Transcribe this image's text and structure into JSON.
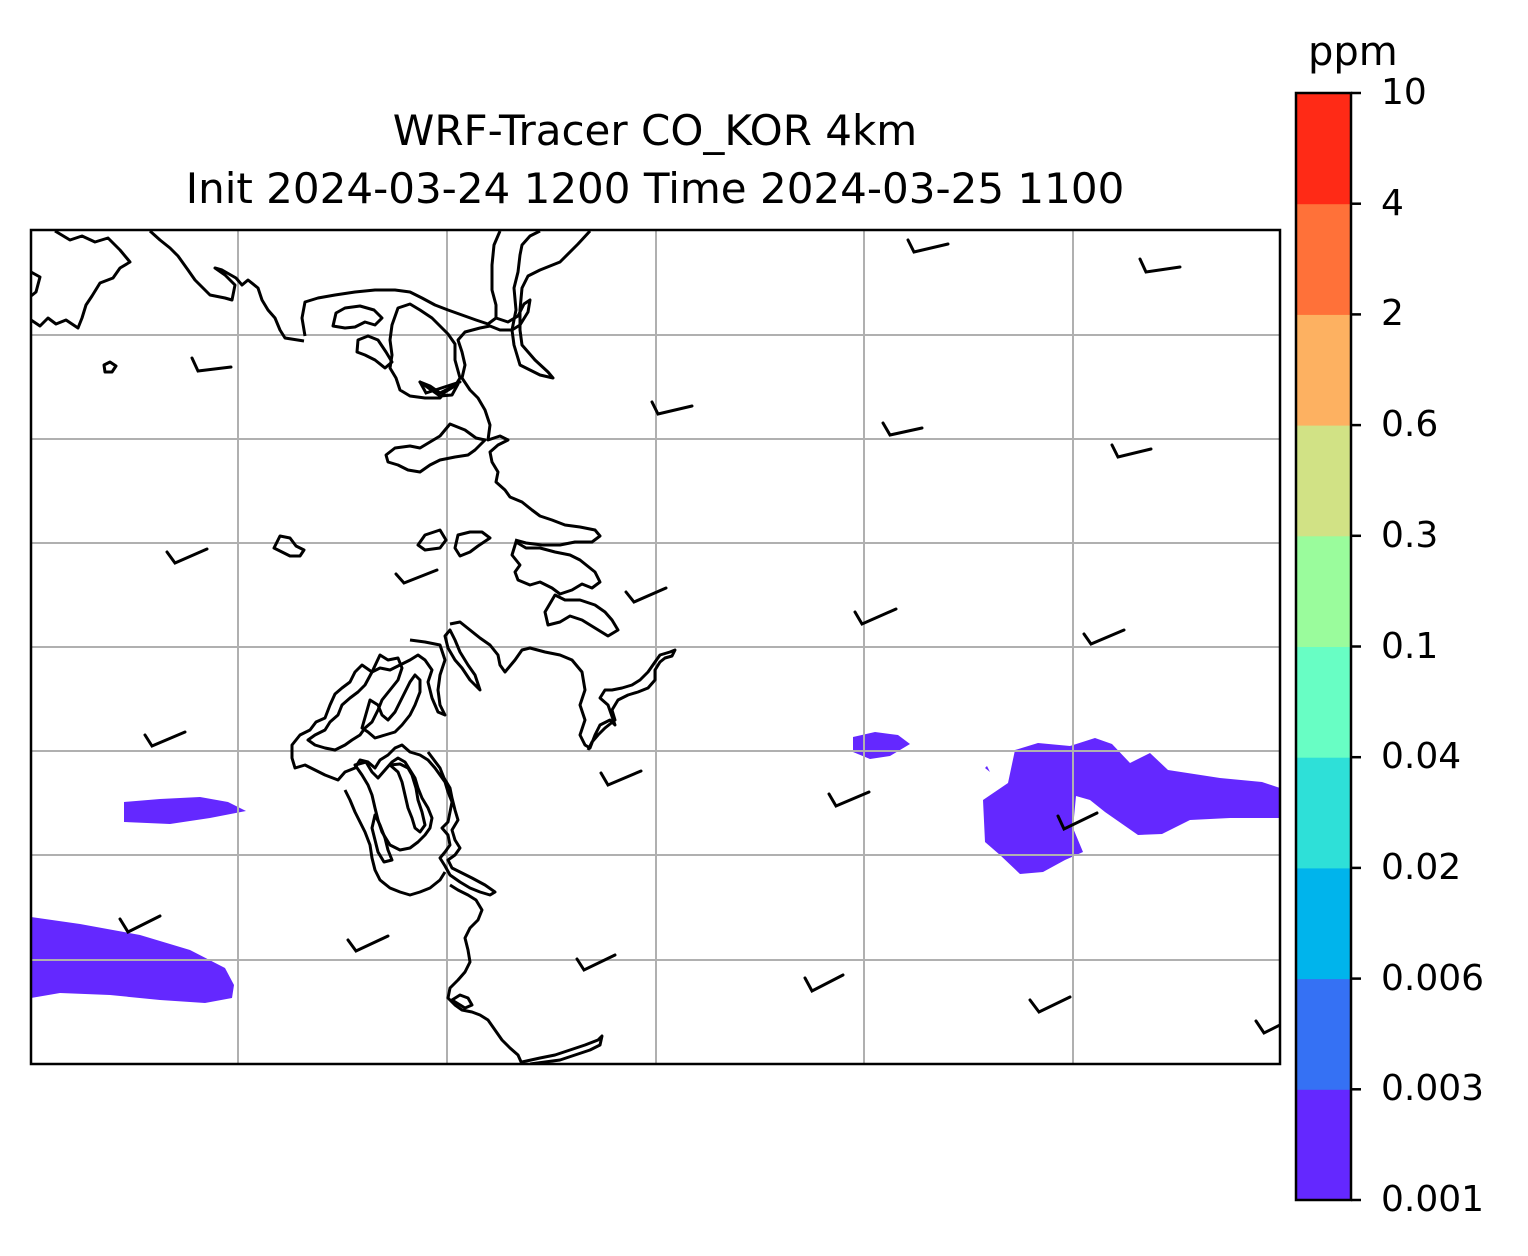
{
  "title": {
    "line1": "WRF-Tracer CO_KOR 4km",
    "line2": "Init 2024-03-24 1200 Time 2024-03-25 1100"
  },
  "colorbar": {
    "unit": "ppm",
    "levels": [
      "0.001",
      "0.003",
      "0.006",
      "0.02",
      "0.04",
      "0.1",
      "0.3",
      "0.6",
      "2",
      "4",
      "10"
    ],
    "colors": [
      "#6428ff",
      "#3571f4",
      "#00b4ec",
      "#2ee0d8",
      "#68fec4",
      "#9afc9c",
      "#d1e285",
      "#fdb161",
      "#ff7139",
      "#ff2a16"
    ]
  },
  "map": {
    "gridlines": true,
    "coastline_color": "#000000",
    "plume_color": "#6428ff",
    "wind_barbs": true
  }
}
